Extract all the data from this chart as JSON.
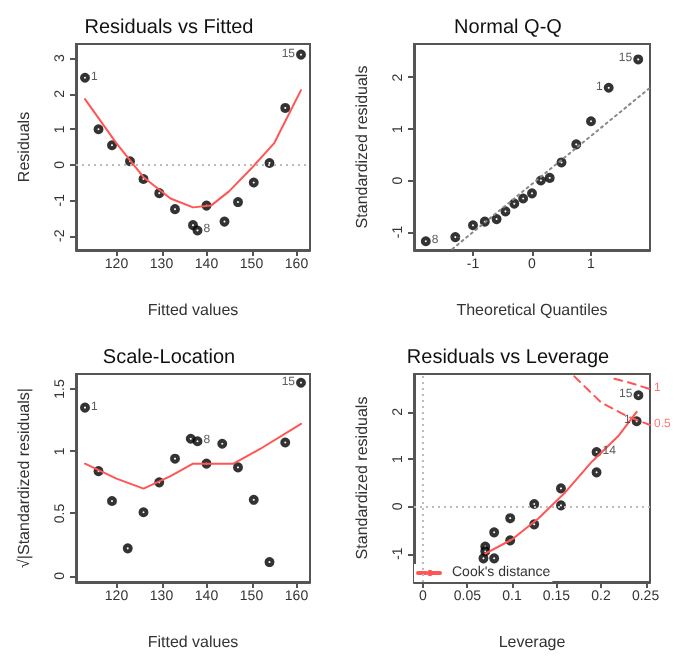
{
  "chart_data": [
    {
      "type": "scatter",
      "title": "Residuals vs Fitted",
      "xlabel": "Fitted values",
      "ylabel": "Residuals",
      "xlim": [
        111,
        163
      ],
      "xticks": [
        120,
        130,
        140,
        150,
        160
      ],
      "ylim": [
        -2.4,
        3.4
      ],
      "yticks": [
        -2,
        -1,
        0,
        1,
        2,
        3
      ],
      "grid": false,
      "legend": false,
      "marker": "circle",
      "series": [
        {
          "color": "#000000",
          "x": [
            113,
            116,
            119,
            123,
            126,
            129.5,
            133,
            137,
            138,
            140,
            144,
            147,
            150.5,
            154,
            157.5,
            161
          ],
          "values": [
            2.45,
            1.0,
            0.55,
            0.1,
            -0.4,
            -0.8,
            -1.25,
            -1.7,
            -1.85,
            -1.15,
            -1.6,
            -1.05,
            -0.5,
            0.05,
            1.6,
            3.1
          ]
        },
        {
          "type": "line",
          "color": "#ff5555",
          "marker": "none",
          "line_style": "solid",
          "x": [
            113,
            120,
            126,
            132,
            137,
            141,
            145,
            150,
            155,
            161
          ],
          "values": [
            1.85,
            0.6,
            -0.35,
            -0.95,
            -1.2,
            -1.15,
            -0.75,
            -0.1,
            0.6,
            2.1
          ]
        }
      ],
      "ref_lines": [
        {
          "axis": "y",
          "value": 0,
          "color": "#bbbbbb",
          "line_style": "dotted"
        }
      ],
      "annotations": [
        {
          "text": "1",
          "x": 113,
          "y": 2.45
        },
        {
          "text": "15",
          "x": 161,
          "y": 3.1
        },
        {
          "text": "8",
          "x": 138,
          "y": -1.85
        }
      ]
    },
    {
      "type": "scatter",
      "title": "Normal Q-Q",
      "xlabel": "Theoretical Quantiles",
      "ylabel": "Standardized residuals",
      "xlim": [
        -2.0,
        2.0
      ],
      "xticks": [
        -1,
        0,
        1
      ],
      "ylim": [
        -1.35,
        2.65
      ],
      "yticks": [
        -1,
        0,
        1,
        2
      ],
      "grid": false,
      "legend": false,
      "marker": "circle",
      "series": [
        {
          "color": "#000000",
          "x": [
            -1.8,
            -1.3,
            -1.0,
            -0.8,
            -0.6,
            -0.45,
            -0.3,
            -0.15,
            0,
            0.15,
            0.3,
            0.5,
            0.75,
            1.0,
            1.3,
            1.8
          ],
          "values": [
            -1.18,
            -1.1,
            -0.87,
            -0.8,
            -0.75,
            -0.6,
            -0.45,
            -0.35,
            -0.25,
            0.0,
            0.05,
            0.35,
            0.7,
            1.15,
            1.8,
            2.35
          ]
        },
        {
          "type": "line",
          "color": "#888888",
          "marker": "none",
          "line_style": "dotted",
          "x": [
            -1.35,
            2.0
          ],
          "values": [
            -1.33,
            1.8
          ]
        }
      ],
      "annotations": [
        {
          "text": "15",
          "x": 1.8,
          "y": 2.35
        },
        {
          "text": "1",
          "x": 1.3,
          "y": 1.8
        },
        {
          "text": "8",
          "x": -1.8,
          "y": -1.18
        }
      ]
    },
    {
      "type": "scatter",
      "title": "Scale-Location",
      "xlabel": "Fitted values",
      "ylabel": "√|Standardized residuals|",
      "xlim": [
        111,
        163
      ],
      "xticks": [
        120,
        130,
        140,
        150,
        160
      ],
      "ylim": [
        -0.05,
        1.62
      ],
      "yticks": [
        0,
        0.5,
        1,
        1.5
      ],
      "grid": false,
      "legend": false,
      "marker": "circle",
      "series": [
        {
          "color": "#000000",
          "x": [
            113,
            116,
            119,
            122.5,
            126,
            129.5,
            133,
            136.5,
            138,
            140,
            143.5,
            147,
            150.5,
            154,
            157.5,
            161
          ],
          "values": [
            1.35,
            0.84,
            0.6,
            0.22,
            0.51,
            0.75,
            0.94,
            1.1,
            1.08,
            0.9,
            1.06,
            0.87,
            0.61,
            0.11,
            1.07,
            1.55
          ]
        },
        {
          "type": "line",
          "color": "#ff5555",
          "marker": "none",
          "line_style": "solid",
          "x": [
            113,
            120,
            126,
            132,
            137,
            141,
            146,
            152,
            161
          ],
          "values": [
            0.9,
            0.78,
            0.7,
            0.8,
            0.9,
            0.9,
            0.9,
            1.02,
            1.22
          ]
        }
      ],
      "annotations": [
        {
          "text": "1",
          "x": 113,
          "y": 1.35
        },
        {
          "text": "15",
          "x": 161,
          "y": 1.55
        },
        {
          "text": "8",
          "x": 138,
          "y": 1.08
        }
      ]
    },
    {
      "type": "scatter",
      "title": "Residuals vs Leverage",
      "xlabel": "Leverage",
      "ylabel": "Standardized residuals",
      "xlim": [
        -0.01,
        0.255
      ],
      "xticks": [
        0,
        0.05,
        0.1,
        0.15,
        0.2,
        0.25
      ],
      "ylim": [
        -1.6,
        2.8
      ],
      "yticks": [
        -1,
        0,
        1,
        2
      ],
      "grid": false,
      "legend": "bottom left",
      "marker": "circle",
      "series": [
        {
          "color": "#000000",
          "x": [
            0.068,
            0.07,
            0.07,
            0.08,
            0.08,
            0.098,
            0.098,
            0.125,
            0.125,
            0.155,
            0.155,
            0.195,
            0.195,
            0.242,
            0.24
          ],
          "values": [
            -1.1,
            -0.85,
            -0.95,
            -1.1,
            -0.55,
            -0.25,
            -0.72,
            0.05,
            -0.38,
            0.38,
            0.02,
            1.15,
            0.72,
            2.35,
            1.8
          ]
        },
        {
          "type": "line",
          "color": "#ff5555",
          "marker": "none",
          "line_style": "solid",
          "x": [
            0.07,
            0.1,
            0.13,
            0.16,
            0.19,
            0.22,
            0.24
          ],
          "values": [
            -1.0,
            -0.7,
            -0.25,
            0.3,
            0.95,
            1.5,
            2.0
          ]
        },
        {
          "type": "line",
          "name": "Cook's distance",
          "color": "#ff5555",
          "marker": "none",
          "line_style": "dashed",
          "x": [
            0.17,
            0.2,
            0.23,
            0.255
          ],
          "values": [
            2.75,
            2.2,
            1.9,
            1.72
          ]
        },
        {
          "type": "line",
          "color": "#ff5555",
          "marker": "none",
          "line_style": "dashed",
          "x": [
            0.215,
            0.235,
            0.255
          ],
          "values": [
            2.7,
            2.6,
            2.48
          ]
        }
      ],
      "ref_lines": [
        {
          "axis": "y",
          "value": 0,
          "color": "#bbbbbb",
          "line_style": "dotted"
        },
        {
          "axis": "x",
          "value": 0,
          "color": "#bbbbbb",
          "line_style": "dotted"
        }
      ],
      "annotations": [
        {
          "text": "15",
          "x": 0.242,
          "y": 2.35
        },
        {
          "text": "1",
          "x": 0.24,
          "y": 1.8
        },
        {
          "text": "14",
          "x": 0.195,
          "y": 1.15
        },
        {
          "text": "0.5",
          "x": 0.255,
          "y": 1.72
        },
        {
          "text": "1",
          "x": 0.255,
          "y": 2.48
        }
      ]
    }
  ]
}
